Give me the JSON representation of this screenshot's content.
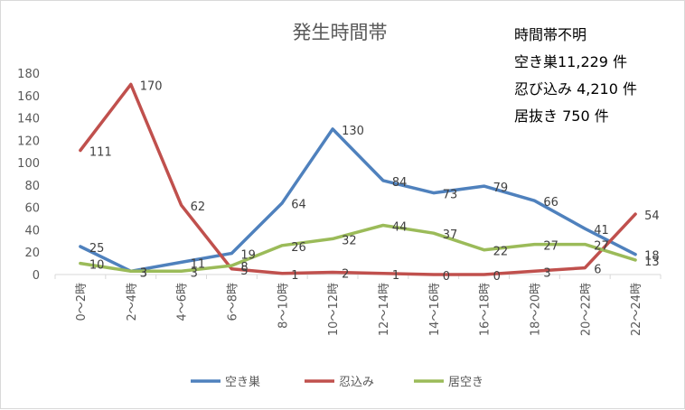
{
  "chart_data": {
    "type": "line",
    "title": "発生時間帯",
    "categories": [
      "0～2時",
      "2～4時",
      "4～6時",
      "6～8時",
      "8～10時",
      "10～12時",
      "12～14時",
      "14～16時",
      "16～18時",
      "18～20時",
      "20～22時",
      "22～24時"
    ],
    "y_ticks": [
      "0",
      "20",
      "40",
      "60",
      "80",
      "100",
      "120",
      "140",
      "160",
      "180"
    ],
    "ylim": [
      0,
      180
    ],
    "grid": false,
    "legend_position": "bottom",
    "series": [
      {
        "name": "空き巣",
        "color": "#4f81bd",
        "values": [
          25,
          3,
          11,
          19,
          64,
          130,
          84,
          73,
          79,
          66,
          41,
          18
        ]
      },
      {
        "name": "忍込み",
        "color": "#c0504d",
        "values": [
          111,
          170,
          62,
          5,
          1,
          2,
          1,
          0,
          0,
          3,
          6,
          54
        ]
      },
      {
        "name": "居空き",
        "color": "#9bbb59",
        "values": [
          10,
          3,
          3,
          8,
          26,
          32,
          44,
          37,
          22,
          27,
          27,
          13
        ]
      }
    ],
    "annotation": {
      "lines": [
        "時間帯不明",
        "空き巣11,229 件",
        "忍び込み 4,210 件",
        "居抜き 750 件"
      ]
    }
  }
}
